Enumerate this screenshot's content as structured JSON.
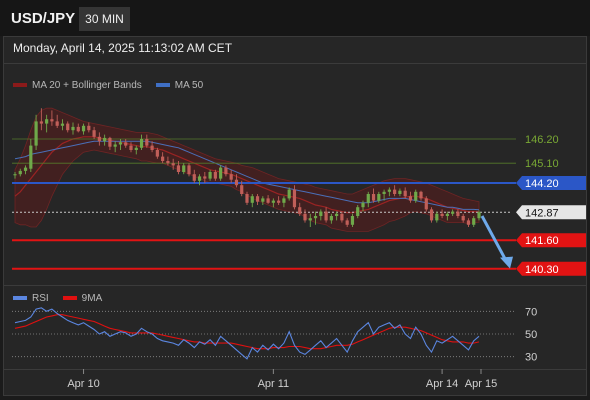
{
  "header": {
    "symbol": "USD/JPY",
    "timeframe": "30 MIN"
  },
  "datetime": "Monday, April 14, 2025 11:13:02 AM CET",
  "legend": {
    "main": [
      {
        "label": "MA 20 + Bollinger Bands",
        "color": "#8b1a1a"
      },
      {
        "label": "MA 50",
        "color": "#3f6fc4"
      }
    ],
    "rsi": [
      {
        "label": "RSI",
        "color": "#5b86e0"
      },
      {
        "label": "9MA",
        "color": "#e01010"
      }
    ]
  },
  "colors": {
    "bull": "#6fa84a",
    "bear": "#c05f59",
    "resistance": "#557a2b",
    "pivot": "#2b57c7",
    "support": "#e21313",
    "rsi": "#5b86e0",
    "rsi_ma": "#e01010",
    "arrow": "#6ea9ea"
  },
  "chart_data": [
    {
      "type": "candlestick",
      "ylim": [
        139.7,
        148.2
      ],
      "x_labels": [
        "Apr 10",
        "Apr 11",
        "Apr 14",
        "Apr 15"
      ],
      "candles": [
        [
          144.55,
          144.7,
          144.4,
          144.6
        ],
        [
          144.6,
          144.85,
          144.5,
          144.75
        ],
        [
          144.75,
          145.0,
          144.6,
          144.9
        ],
        [
          144.85,
          146.2,
          144.7,
          145.9
        ],
        [
          145.9,
          147.3,
          145.7,
          147.0
        ],
        [
          147.0,
          147.6,
          146.6,
          146.9
        ],
        [
          146.9,
          147.3,
          146.5,
          147.1
        ],
        [
          147.1,
          147.5,
          146.8,
          147.0
        ],
        [
          147.0,
          147.3,
          146.7,
          146.8
        ],
        [
          146.8,
          147.1,
          146.6,
          146.9
        ],
        [
          146.9,
          147.0,
          146.5,
          146.6
        ],
        [
          146.6,
          146.95,
          146.4,
          146.75
        ],
        [
          146.75,
          146.9,
          146.5,
          146.55
        ],
        [
          146.55,
          146.9,
          146.4,
          146.8
        ],
        [
          146.8,
          146.95,
          146.5,
          146.6
        ],
        [
          146.6,
          146.75,
          146.2,
          146.3
        ],
        [
          146.3,
          146.5,
          145.9,
          146.1
        ],
        [
          146.1,
          146.4,
          145.9,
          146.25
        ],
        [
          146.25,
          146.3,
          145.7,
          145.85
        ],
        [
          145.85,
          146.1,
          145.6,
          145.95
        ],
        [
          145.95,
          146.2,
          145.7,
          146.05
        ],
        [
          146.05,
          146.2,
          145.8,
          145.9
        ],
        [
          145.9,
          146.05,
          145.6,
          145.7
        ],
        [
          145.7,
          145.9,
          145.5,
          145.8
        ],
        [
          145.8,
          146.4,
          145.7,
          146.2
        ],
        [
          146.2,
          146.4,
          145.8,
          145.9
        ],
        [
          145.9,
          146.1,
          145.6,
          145.7
        ],
        [
          145.7,
          145.8,
          145.3,
          145.4
        ],
        [
          145.4,
          145.6,
          145.1,
          145.2
        ],
        [
          145.2,
          145.4,
          145.0,
          145.1
        ],
        [
          145.1,
          145.3,
          144.8,
          145.0
        ],
        [
          145.0,
          145.2,
          144.6,
          144.7
        ],
        [
          144.7,
          145.1,
          144.6,
          145.0
        ],
        [
          145.0,
          145.1,
          144.5,
          144.6
        ],
        [
          144.6,
          144.8,
          144.2,
          144.3
        ],
        [
          144.3,
          144.6,
          144.1,
          144.5
        ],
        [
          144.5,
          144.7,
          144.2,
          144.4
        ],
        [
          144.4,
          144.8,
          144.3,
          144.7
        ],
        [
          144.7,
          144.8,
          144.3,
          144.4
        ],
        [
          144.4,
          145.0,
          144.3,
          144.9
        ],
        [
          144.9,
          145.0,
          144.5,
          144.6
        ],
        [
          144.6,
          144.8,
          144.2,
          144.35
        ],
        [
          144.35,
          144.6,
          144.0,
          144.1
        ],
        [
          144.1,
          144.3,
          143.6,
          143.7
        ],
        [
          143.7,
          143.8,
          143.2,
          143.3
        ],
        [
          143.3,
          143.7,
          143.1,
          143.6
        ],
        [
          143.6,
          143.7,
          143.2,
          143.35
        ],
        [
          143.35,
          143.6,
          143.2,
          143.5
        ],
        [
          143.5,
          143.65,
          143.25,
          143.3
        ],
        [
          143.3,
          143.5,
          143.1,
          143.4
        ],
        [
          143.4,
          143.6,
          143.2,
          143.3
        ],
        [
          143.3,
          143.6,
          143.1,
          143.5
        ],
        [
          143.5,
          144.0,
          143.4,
          143.9
        ],
        [
          143.9,
          144.1,
          143.0,
          143.1
        ],
        [
          143.1,
          143.3,
          142.7,
          142.8
        ],
        [
          142.8,
          143.0,
          142.4,
          142.5
        ],
        [
          142.5,
          142.8,
          142.2,
          142.6
        ],
        [
          142.6,
          142.9,
          142.3,
          142.7
        ],
        [
          142.7,
          143.0,
          142.5,
          142.9
        ],
        [
          142.9,
          143.1,
          142.4,
          142.5
        ],
        [
          142.5,
          142.8,
          142.35,
          142.7
        ],
        [
          142.7,
          142.9,
          142.5,
          142.8
        ],
        [
          142.8,
          142.9,
          142.4,
          142.5
        ],
        [
          142.5,
          142.6,
          142.2,
          142.3
        ],
        [
          142.3,
          142.8,
          142.2,
          142.7
        ],
        [
          142.7,
          143.2,
          142.6,
          143.1
        ],
        [
          143.1,
          143.4,
          142.9,
          143.3
        ],
        [
          143.3,
          143.8,
          143.1,
          143.7
        ],
        [
          143.7,
          143.95,
          143.3,
          143.4
        ],
        [
          143.4,
          143.8,
          143.3,
          143.7
        ],
        [
          143.7,
          143.9,
          143.4,
          143.8
        ],
        [
          143.8,
          144.0,
          143.6,
          143.9
        ],
        [
          143.9,
          144.1,
          143.6,
          143.7
        ],
        [
          143.7,
          143.95,
          143.6,
          143.85
        ],
        [
          143.85,
          144.0,
          143.5,
          143.6
        ],
        [
          143.6,
          143.8,
          143.3,
          143.4
        ],
        [
          143.4,
          143.9,
          143.3,
          143.8
        ],
        [
          143.8,
          143.85,
          143.4,
          143.5
        ],
        [
          143.5,
          143.6,
          142.9,
          143.0
        ],
        [
          143.0,
          143.1,
          142.4,
          142.5
        ],
        [
          142.5,
          142.9,
          142.4,
          142.8
        ],
        [
          142.8,
          143.0,
          142.6,
          142.7
        ],
        [
          142.7,
          142.9,
          142.5,
          142.8
        ],
        [
          142.8,
          143.0,
          142.7,
          142.9
        ],
        [
          142.9,
          143.0,
          142.6,
          142.7
        ],
        [
          142.7,
          142.8,
          142.4,
          142.5
        ],
        [
          142.5,
          142.6,
          142.2,
          142.3
        ],
        [
          142.3,
          142.7,
          142.2,
          142.6
        ],
        [
          142.6,
          142.95,
          142.5,
          142.87
        ]
      ],
      "ma20": [
        143.6,
        143.8,
        144.1,
        144.4,
        144.7,
        145.0,
        145.3,
        145.6,
        145.8,
        146.0,
        146.1,
        146.2,
        146.25,
        146.3,
        146.3,
        146.3,
        146.25,
        146.2,
        146.15,
        146.1,
        146.05,
        146.0,
        145.95,
        145.9,
        145.85,
        145.85,
        145.8,
        145.75,
        145.7,
        145.6,
        145.5,
        145.4,
        145.3,
        145.2,
        145.1,
        145.0,
        144.9,
        144.8,
        144.75,
        144.7,
        144.65,
        144.6,
        144.5,
        144.4,
        144.3,
        144.2,
        144.1,
        144.0,
        143.9,
        143.8,
        143.7,
        143.65,
        143.6,
        143.55,
        143.5,
        143.4,
        143.3,
        143.2,
        143.15,
        143.1,
        143.0,
        142.95,
        142.9,
        142.85,
        142.85,
        142.9,
        142.95,
        143.0,
        143.1,
        143.2,
        143.3,
        143.4,
        143.45,
        143.5,
        143.55,
        143.6,
        143.6,
        143.55,
        143.5,
        143.4,
        143.3,
        143.2,
        143.1,
        143.05,
        143.0,
        142.95,
        142.9,
        142.9,
        142.88
      ],
      "bb_upper": [
        144.8,
        145.3,
        145.9,
        146.6,
        147.2,
        147.5,
        147.6,
        147.6,
        147.5,
        147.4,
        147.3,
        147.2,
        147.1,
        147.0,
        146.95,
        146.9,
        146.85,
        146.8,
        146.75,
        146.7,
        146.65,
        146.6,
        146.55,
        146.5,
        146.5,
        146.5,
        146.45,
        146.4,
        146.3,
        146.2,
        146.1,
        146.0,
        145.9,
        145.8,
        145.7,
        145.6,
        145.5,
        145.4,
        145.3,
        145.25,
        145.2,
        145.15,
        145.1,
        145.0,
        144.95,
        144.9,
        144.8,
        144.7,
        144.6,
        144.5,
        144.4,
        144.35,
        144.3,
        144.25,
        144.2,
        144.15,
        144.1,
        144.0,
        143.95,
        143.9,
        143.85,
        143.8,
        143.75,
        143.7,
        143.7,
        143.8,
        143.9,
        144.0,
        144.1,
        144.2,
        144.3,
        144.35,
        144.4,
        144.4,
        144.4,
        144.35,
        144.3,
        144.25,
        144.2,
        144.1,
        144.0,
        143.9,
        143.8,
        143.7,
        143.6,
        143.5,
        143.45,
        143.4,
        143.35
      ],
      "bb_lower": [
        142.4,
        142.3,
        142.3,
        142.2,
        142.2,
        142.5,
        143.0,
        143.6,
        144.1,
        144.6,
        144.9,
        145.2,
        145.4,
        145.6,
        145.65,
        145.7,
        145.65,
        145.6,
        145.55,
        145.5,
        145.45,
        145.4,
        145.35,
        145.3,
        145.2,
        145.2,
        145.15,
        145.1,
        145.1,
        145.0,
        144.9,
        144.8,
        144.7,
        144.6,
        144.5,
        144.4,
        144.3,
        144.2,
        144.2,
        144.15,
        144.1,
        144.05,
        143.9,
        143.8,
        143.65,
        143.5,
        143.4,
        143.3,
        143.2,
        143.1,
        143.0,
        142.95,
        142.9,
        142.85,
        142.8,
        142.65,
        142.5,
        142.4,
        142.35,
        142.3,
        142.15,
        142.1,
        142.05,
        142.0,
        142.0,
        142.0,
        142.0,
        142.0,
        142.1,
        142.2,
        142.3,
        142.45,
        142.5,
        142.6,
        142.7,
        142.85,
        142.9,
        142.85,
        142.8,
        142.7,
        142.6,
        142.5,
        142.4,
        142.4,
        142.4,
        142.4,
        142.35,
        142.4,
        142.41
      ],
      "ma50": [
        145.3,
        145.35,
        145.4,
        145.5,
        145.55,
        145.6,
        145.65,
        145.7,
        145.75,
        145.8,
        145.85,
        145.9,
        145.95,
        146.0,
        146.05,
        146.1,
        146.1,
        146.1,
        146.1,
        146.1,
        146.1,
        146.1,
        146.1,
        146.1,
        146.1,
        146.1,
        146.05,
        146.0,
        145.95,
        145.9,
        145.85,
        145.8,
        145.7,
        145.6,
        145.5,
        145.4,
        145.3,
        145.2,
        145.1,
        145.0,
        144.9,
        144.8,
        144.7,
        144.6,
        144.5,
        144.4,
        144.3,
        144.2,
        144.15,
        144.1,
        144.05,
        144.0,
        143.95,
        143.9,
        143.85,
        143.8,
        143.75,
        143.7,
        143.65,
        143.6,
        143.55,
        143.5,
        143.45,
        143.4,
        143.35,
        143.3,
        143.3,
        143.3,
        143.35,
        143.4,
        143.45,
        143.5,
        143.5,
        143.5,
        143.5,
        143.45,
        143.4,
        143.35,
        143.3,
        143.25,
        143.2,
        143.15,
        143.1,
        143.1,
        143.05,
        143.0,
        143.0,
        143.0,
        142.98
      ],
      "levels": [
        {
          "value": 146.2,
          "label": "146.20",
          "kind": "resistance"
        },
        {
          "value": 145.1,
          "label": "145.10",
          "kind": "resistance"
        },
        {
          "value": 144.2,
          "label": "144.20",
          "kind": "pivot"
        },
        {
          "value": 142.87,
          "label": "142.87",
          "kind": "current"
        },
        {
          "value": 141.6,
          "label": "141.60",
          "kind": "support"
        },
        {
          "value": 140.3,
          "label": "140.30",
          "kind": "support"
        }
      ],
      "arrow": {
        "from_value": 142.7,
        "to_value": 140.4
      }
    },
    {
      "type": "line",
      "ylim": [
        20,
        80
      ],
      "y_ticks": [
        70,
        50,
        30
      ],
      "rsi": [
        60,
        61,
        62,
        65,
        72,
        73,
        70,
        72,
        68,
        65,
        62,
        60,
        58,
        60,
        57,
        54,
        50,
        52,
        48,
        50,
        52,
        51,
        48,
        50,
        55,
        52,
        50,
        46,
        44,
        43,
        42,
        40,
        45,
        42,
        38,
        43,
        41,
        45,
        40,
        48,
        44,
        40,
        36,
        32,
        28,
        38,
        34,
        40,
        36,
        41,
        37,
        42,
        52,
        40,
        34,
        32,
        36,
        40,
        44,
        38,
        42,
        46,
        40,
        34,
        44,
        52,
        56,
        60,
        50,
        56,
        58,
        60,
        55,
        58,
        50,
        46,
        56,
        50,
        40,
        34,
        44,
        42,
        45,
        48,
        44,
        40,
        36,
        44,
        48
      ],
      "rsi_ma": [
        55,
        56,
        57,
        59,
        61,
        63,
        65,
        66,
        67,
        67,
        66,
        65,
        64,
        63,
        62,
        61,
        59,
        57,
        55,
        54,
        53,
        52,
        51,
        51,
        51,
        51,
        51,
        50,
        49,
        48,
        47,
        46,
        45,
        44,
        43,
        43,
        42,
        42,
        42,
        42,
        42,
        42,
        41,
        40,
        39,
        38,
        37,
        37,
        37,
        38,
        38,
        38,
        39,
        39,
        39,
        38,
        37,
        37,
        37,
        38,
        39,
        40,
        40,
        40,
        41,
        43,
        45,
        47,
        49,
        51,
        53,
        55,
        56,
        56,
        56,
        55,
        54,
        53,
        51,
        49,
        47,
        45,
        44,
        43,
        43,
        43,
        42,
        42,
        43
      ]
    }
  ]
}
